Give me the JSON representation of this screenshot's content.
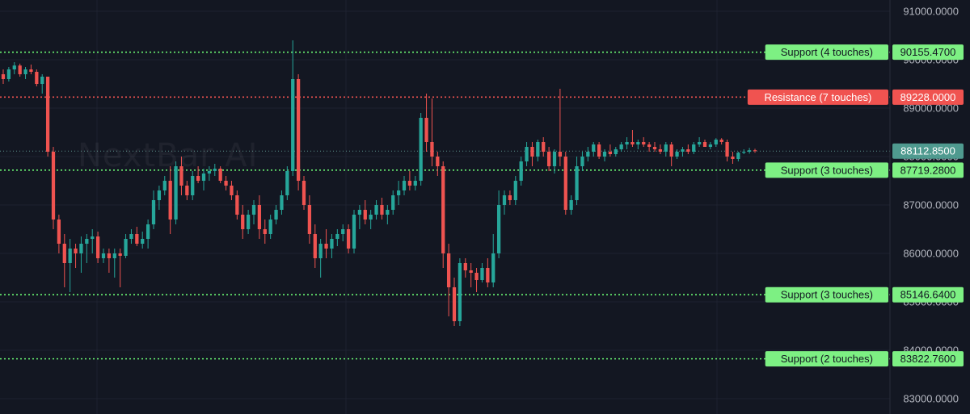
{
  "watermark": "NextBar AI",
  "chart_data": {
    "type": "candlestick",
    "ylim": [
      82800,
      91200
    ],
    "y_ticks": [
      "91000.0000",
      "90000.0000",
      "89000.0000",
      "88000.0000",
      "87000.0000",
      "86000.0000",
      "85000.0000",
      "84000.0000",
      "83000.0000"
    ],
    "last_price": "88112.8500",
    "levels": [
      {
        "label": "Support (4 touches)",
        "value": "90155.4700",
        "kind": "support"
      },
      {
        "label": "Resistance (7 touches)",
        "value": "89228.0000",
        "kind": "resistance"
      },
      {
        "label": "Support (3 touches)",
        "value": "87719.2800",
        "kind": "support"
      },
      {
        "label": "Support (3 touches)",
        "value": "85146.6400",
        "kind": "support"
      },
      {
        "label": "Support (2 touches)",
        "value": "83822.7600",
        "kind": "support"
      }
    ],
    "candles_ohlc": [
      [
        89700,
        89800,
        89500,
        89600
      ],
      [
        89600,
        89850,
        89550,
        89800
      ],
      [
        89800,
        89950,
        89700,
        89880
      ],
      [
        89880,
        89920,
        89650,
        89700
      ],
      [
        89700,
        89850,
        89600,
        89800
      ],
      [
        89800,
        89900,
        89700,
        89750
      ],
      [
        89750,
        89800,
        89450,
        89500
      ],
      [
        89500,
        89700,
        89300,
        89650
      ],
      [
        89650,
        89650,
        88000,
        88100
      ],
      [
        88100,
        88200,
        86500,
        86700
      ],
      [
        86700,
        86800,
        86000,
        86200
      ],
      [
        86200,
        86400,
        85300,
        85800
      ],
      [
        85800,
        86300,
        85200,
        86100
      ],
      [
        86100,
        86200,
        85700,
        86000
      ],
      [
        86000,
        86350,
        85600,
        86200
      ],
      [
        86200,
        86400,
        85800,
        86300
      ],
      [
        86300,
        86500,
        86000,
        86350
      ],
      [
        86350,
        86450,
        85800,
        85900
      ],
      [
        85900,
        86100,
        85800,
        86000
      ],
      [
        86000,
        86100,
        85600,
        85900
      ],
      [
        85900,
        86100,
        85500,
        86000
      ],
      [
        86000,
        86100,
        85300,
        85950
      ],
      [
        85950,
        86400,
        85900,
        86300
      ],
      [
        86300,
        86500,
        86200,
        86400
      ],
      [
        86400,
        86550,
        86150,
        86200
      ],
      [
        86200,
        86450,
        86100,
        86300
      ],
      [
        86300,
        86700,
        86100,
        86600
      ],
      [
        86600,
        87300,
        86500,
        87100
      ],
      [
        87100,
        87400,
        86900,
        87300
      ],
      [
        87300,
        87600,
        87200,
        87500
      ],
      [
        87500,
        87800,
        86400,
        86700
      ],
      [
        86700,
        87900,
        86600,
        87800
      ],
      [
        87800,
        88000,
        87200,
        87400
      ],
      [
        87400,
        87500,
        87100,
        87200
      ],
      [
        87200,
        87700,
        87100,
        87600
      ],
      [
        87600,
        87800,
        87450,
        87500
      ],
      [
        87500,
        87750,
        87300,
        87650
      ],
      [
        87650,
        87800,
        87500,
        87700
      ],
      [
        87700,
        87850,
        87600,
        87750
      ],
      [
        87750,
        87800,
        87450,
        87500
      ],
      [
        87500,
        87600,
        87300,
        87400
      ],
      [
        87400,
        87500,
        87100,
        87200
      ],
      [
        87200,
        87300,
        86700,
        86800
      ],
      [
        86800,
        87000,
        86300,
        86500
      ],
      [
        86500,
        86900,
        86400,
        86800
      ],
      [
        86800,
        87100,
        86600,
        87000
      ],
      [
        87000,
        87200,
        86300,
        86500
      ],
      [
        86500,
        86700,
        86200,
        86400
      ],
      [
        86400,
        86800,
        86300,
        86700
      ],
      [
        86700,
        87000,
        86600,
        86900
      ],
      [
        86900,
        87300,
        86800,
        87200
      ],
      [
        87200,
        87800,
        87100,
        87700
      ],
      [
        87700,
        90400,
        87600,
        89600
      ],
      [
        89600,
        89700,
        87300,
        87500
      ],
      [
        87500,
        87600,
        86900,
        87000
      ],
      [
        87000,
        87200,
        86200,
        86400
      ],
      [
        86400,
        86600,
        85700,
        85900
      ],
      [
        85900,
        86300,
        85500,
        86200
      ],
      [
        86200,
        86500,
        85900,
        86100
      ],
      [
        86100,
        86400,
        85900,
        86300
      ],
      [
        86300,
        86500,
        86150,
        86400
      ],
      [
        86400,
        86600,
        86250,
        86500
      ],
      [
        86500,
        86600,
        86000,
        86100
      ],
      [
        86100,
        86900,
        86000,
        86800
      ],
      [
        86800,
        87000,
        86500,
        86900
      ],
      [
        86900,
        87100,
        86600,
        86700
      ],
      [
        86700,
        86900,
        86500,
        86800
      ],
      [
        86800,
        87100,
        86700,
        87000
      ],
      [
        87000,
        87150,
        86700,
        86800
      ],
      [
        86800,
        87000,
        86600,
        86900
      ],
      [
        86900,
        87300,
        86800,
        87200
      ],
      [
        87200,
        87500,
        87000,
        87300
      ],
      [
        87300,
        87600,
        87200,
        87500
      ],
      [
        87500,
        87700,
        87300,
        87400
      ],
      [
        87400,
        87600,
        87300,
        87500
      ],
      [
        87500,
        88900,
        87400,
        88800
      ],
      [
        88800,
        89300,
        88100,
        88300
      ],
      [
        88300,
        89200,
        87800,
        88000
      ],
      [
        88000,
        88100,
        87600,
        87800
      ],
      [
        87800,
        87900,
        85700,
        86000
      ],
      [
        86000,
        86200,
        84700,
        85300
      ],
      [
        85300,
        85500,
        84500,
        84600
      ],
      [
        84600,
        85900,
        84500,
        85800
      ],
      [
        85800,
        85900,
        85500,
        85650
      ],
      [
        85650,
        85800,
        85300,
        85600
      ],
      [
        85600,
        85700,
        85200,
        85450
      ],
      [
        85450,
        85800,
        85400,
        85700
      ],
      [
        85700,
        85900,
        85300,
        85400
      ],
      [
        85400,
        86400,
        85300,
        86000
      ],
      [
        86000,
        87300,
        85900,
        87000
      ],
      [
        87000,
        87300,
        86800,
        87200
      ],
      [
        87200,
        87300,
        87000,
        87100
      ],
      [
        87100,
        87600,
        87000,
        87500
      ],
      [
        87500,
        88000,
        87400,
        87900
      ],
      [
        87900,
        88300,
        87800,
        88200
      ],
      [
        88200,
        88300,
        87800,
        88000
      ],
      [
        88000,
        88350,
        87900,
        88300
      ],
      [
        88300,
        88400,
        88000,
        88100
      ],
      [
        88100,
        88200,
        87700,
        87800
      ],
      [
        87800,
        88150,
        87650,
        88100
      ],
      [
        88100,
        89400,
        87800,
        88000
      ],
      [
        88000,
        88100,
        86800,
        86900
      ],
      [
        86900,
        87200,
        86800,
        87100
      ],
      [
        87100,
        88000,
        87000,
        87800
      ],
      [
        87800,
        88100,
        87700,
        88000
      ],
      [
        88000,
        88200,
        87900,
        88100
      ],
      [
        88100,
        88300,
        88000,
        88250
      ],
      [
        88250,
        88300,
        87950,
        88000
      ],
      [
        88000,
        88150,
        87900,
        88100
      ],
      [
        88100,
        88250,
        88000,
        88050
      ],
      [
        88050,
        88200,
        88000,
        88150
      ],
      [
        88150,
        88300,
        88100,
        88250
      ],
      [
        88250,
        88400,
        88150,
        88300
      ],
      [
        88300,
        88550,
        88200,
        88250
      ],
      [
        88250,
        88350,
        88150,
        88300
      ],
      [
        88300,
        88400,
        88200,
        88250
      ],
      [
        88250,
        88300,
        88100,
        88200
      ],
      [
        88200,
        88300,
        88100,
        88150
      ],
      [
        88150,
        88250,
        88050,
        88100
      ],
      [
        88100,
        88300,
        88000,
        88250
      ],
      [
        88250,
        88300,
        87800,
        88000
      ],
      [
        88000,
        88150,
        87950,
        88100
      ],
      [
        88100,
        88200,
        88000,
        88150
      ],
      [
        88150,
        88250,
        88050,
        88100
      ],
      [
        88100,
        88300,
        88050,
        88250
      ],
      [
        88250,
        88400,
        88200,
        88300
      ],
      [
        88300,
        88350,
        88200,
        88200
      ],
      [
        88200,
        88300,
        88150,
        88250
      ],
      [
        88250,
        88380,
        88200,
        88350
      ],
      [
        88350,
        88380,
        88250,
        88300
      ],
      [
        88300,
        88350,
        87900,
        88000
      ],
      [
        88000,
        88100,
        87850,
        87950
      ],
      [
        87950,
        88100,
        87900,
        88080
      ],
      [
        88080,
        88150,
        88050,
        88100
      ],
      [
        88100,
        88180,
        88060,
        88130
      ],
      [
        88130,
        88160,
        88080,
        88113
      ]
    ]
  }
}
